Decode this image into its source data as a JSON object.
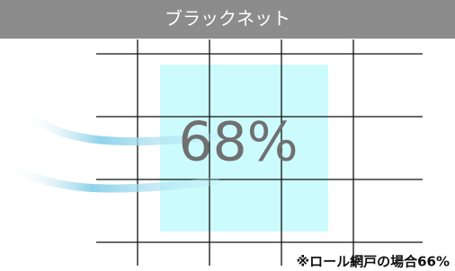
{
  "header": {
    "title": "ブラックネット"
  },
  "figure": {
    "label": "68%"
  },
  "footnote": "※ロール網戸の場合66%"
}
